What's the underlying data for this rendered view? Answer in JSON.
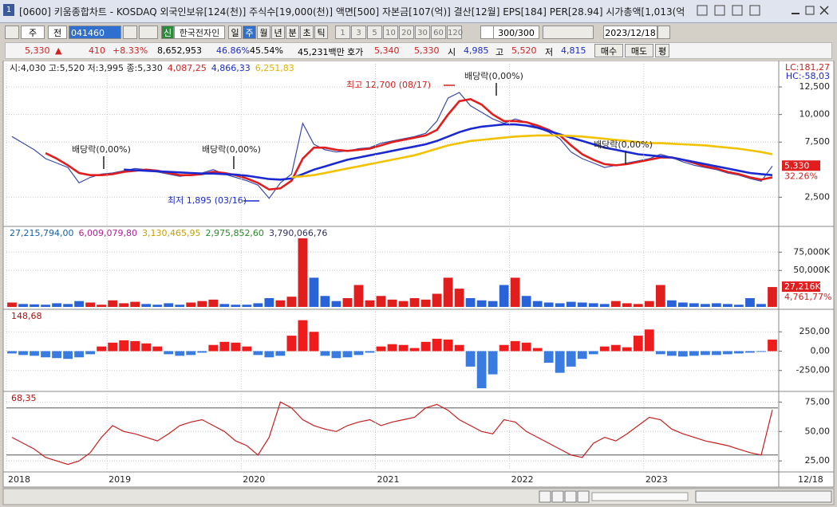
{
  "window": {
    "icon": "1",
    "title": "[0600] 키움종합차트 - KOSDAQ 외국인보유[124(천)] 주식수[19,000(천)] 액면[500] 자본금[107(억)] 결산[12월] EPS[184] PER[28.94] 시가총액[1,013(억"
  },
  "toolbar": {
    "period": "주",
    "scope": "전",
    "code": "041460",
    "new_tag": "신",
    "name": "한국전자인",
    "units": [
      "일",
      "주",
      "월",
      "년",
      "분",
      "초",
      "틱"
    ],
    "intervals": [
      "1",
      "3",
      "5",
      "10",
      "20",
      "30",
      "60",
      "120"
    ],
    "count": "300/300",
    "date": "2023/12/18"
  },
  "info_bar": {
    "price": "5,330",
    "arrow": "▲",
    "change": "410",
    "change_pct": "+8.33%",
    "volume": "8,652,953",
    "ratio1": "46.86%",
    "ratio2": "45.54%",
    "amount": "45,231백만",
    "quote_label": "호가",
    "ask": "5,340",
    "bid": "5,330",
    "open_label": "시",
    "open": "4,985",
    "high_label": "고",
    "high": "5,520",
    "low_label": "저",
    "low": "4,815",
    "buy": "매수",
    "sell": "매도",
    "avg": "평"
  },
  "chart_data": [
    {
      "type": "line",
      "legend": [
        "시:4,030 고:5,520 저:3,995 종:5,330",
        "4,087,25",
        "4,866,33",
        "6,251,83"
      ],
      "legend_colors": [
        "#222222",
        "#d42020",
        "#1a2ad0",
        "#e0b000"
      ],
      "series": [
        {
          "color": "#3a4aa8",
          "values": [
            8000,
            7400,
            6800,
            6000,
            5600,
            5200,
            3800,
            4300,
            4600,
            4700,
            4900,
            5100,
            5000,
            4800,
            4600,
            4400,
            4500,
            4700,
            5000,
            4600,
            4300,
            4000,
            3600,
            2400,
            3800,
            4600,
            9200,
            7300,
            6800,
            6600,
            6700,
            6900,
            7000,
            7400,
            7600,
            7800,
            8000,
            8300,
            9400,
            11500,
            12000,
            10800,
            10200,
            9600,
            9200,
            9600,
            9300,
            8800,
            8400,
            7800,
            6600,
            6000,
            5600,
            5200,
            5400,
            5600,
            5800,
            6000,
            6400,
            6100,
            5700,
            5400,
            5200,
            5000,
            4700,
            4500,
            4200,
            3950,
            5330
          ]
        },
        {
          "color": "#e01e1e",
          "values": [
            null,
            null,
            null,
            6500,
            6000,
            5400,
            4700,
            4500,
            4500,
            4600,
            4800,
            4900,
            5000,
            4900,
            4700,
            4500,
            4500,
            4600,
            4800,
            4700,
            4500,
            4200,
            3800,
            3200,
            3300,
            4000,
            6000,
            7000,
            7000,
            6800,
            6700,
            6800,
            6900,
            7200,
            7500,
            7700,
            7900,
            8100,
            8600,
            10000,
            11200,
            11400,
            10900,
            10000,
            9400,
            9400,
            9300,
            9000,
            8600,
            8100,
            7200,
            6400,
            5900,
            5500,
            5400,
            5500,
            5700,
            5900,
            6100,
            6100,
            5900,
            5600,
            5300,
            5100,
            4800,
            4600,
            4300,
            4100,
            4300
          ]
        },
        {
          "color": "#1a2ad0",
          "values": [
            null,
            null,
            null,
            null,
            null,
            null,
            null,
            null,
            null,
            null,
            5000,
            4950,
            4900,
            4850,
            4800,
            4750,
            4700,
            4650,
            4650,
            4600,
            4550,
            4450,
            4300,
            4150,
            4100,
            4200,
            4600,
            5000,
            5300,
            5600,
            5900,
            6100,
            6300,
            6500,
            6700,
            6900,
            7100,
            7300,
            7600,
            8000,
            8400,
            8700,
            8900,
            9000,
            9100,
            9100,
            9000,
            8800,
            8500,
            8200,
            7900,
            7600,
            7300,
            7000,
            6800,
            6600,
            6400,
            6300,
            6200,
            6100,
            5900,
            5700,
            5500,
            5300,
            5100,
            4900,
            4700,
            4600,
            4500
          ]
        },
        {
          "color": "#f2c200",
          "values": [
            null,
            null,
            null,
            null,
            null,
            null,
            null,
            null,
            null,
            null,
            null,
            null,
            null,
            null,
            null,
            null,
            null,
            null,
            null,
            null,
            null,
            null,
            null,
            null,
            null,
            4300,
            4400,
            4500,
            4700,
            4900,
            5100,
            5300,
            5500,
            5700,
            5900,
            6100,
            6300,
            6600,
            6900,
            7200,
            7400,
            7600,
            7700,
            7800,
            7900,
            8000,
            8050,
            8100,
            8100,
            8100,
            8050,
            8000,
            7900,
            7800,
            7700,
            7600,
            7500,
            7400,
            7400,
            7350,
            7300,
            7250,
            7200,
            7100,
            7000,
            6900,
            6750,
            6600,
            6400
          ]
        }
      ],
      "ylim": [
        0,
        14600
      ],
      "yticks": [
        {
          "value": 2500,
          "label": "2,500"
        },
        {
          "value": 7500,
          "label": "7,500"
        },
        {
          "value": 10000,
          "label": "10,000"
        },
        {
          "value": 12500,
          "label": "12,500"
        }
      ],
      "grid": true,
      "annotations": [
        "배당락(0,00%)",
        "배당락(0,00%)",
        "배당락(0,00%)",
        "배당락(0,00%)",
        "최고 12,700 (08/17)",
        "최저 1,895 (03/16)"
      ],
      "annotation_colors": [
        "#222222",
        "#222222",
        "#222222",
        "#222222",
        "#d42020",
        "#1a2ad0"
      ],
      "last_label": "5,330",
      "last_pct": "32.26%",
      "lc_label": "LC:181,27",
      "hc_label": "HC:-58,03"
    },
    {
      "type": "bar",
      "legend": [
        "27,215,794,00",
        "6,009,079,80",
        "3,130,465,95",
        "2,975,852,60",
        "3,790,066,76"
      ],
      "legend_colors": [
        "#1a5fa0",
        "#b0209a",
        "#c8a000",
        "#2a8a2a",
        "#303060"
      ],
      "values": [
        6000,
        4000,
        3500,
        3000,
        5000,
        4000,
        8000,
        6000,
        3000,
        9000,
        5000,
        7000,
        4000,
        3000,
        5000,
        3000,
        6000,
        8000,
        10000,
        4000,
        3000,
        3000,
        5000,
        12000,
        9000,
        14000,
        94000,
        40000,
        15000,
        8000,
        12000,
        30000,
        9000,
        15000,
        10000,
        8000,
        12000,
        10000,
        18000,
        40000,
        25000,
        12000,
        9000,
        8000,
        30000,
        40000,
        15000,
        8000,
        6000,
        5000,
        7000,
        6000,
        5000,
        4000,
        8000,
        5000,
        4000,
        8000,
        30000,
        9000,
        6000,
        5000,
        4000,
        5000,
        4000,
        3000,
        12000,
        4000,
        27216
      ],
      "up_color": "#e01e1e",
      "down_color": "#2a63d8",
      "ylim": [
        0,
        107000
      ],
      "yticks": [
        {
          "value": 50000,
          "label": "50,000K"
        },
        {
          "value": 75000,
          "label": "75,000K"
        }
      ],
      "grid": true,
      "last_label": "27,216K",
      "last_pct": "4,761,77%"
    },
    {
      "type": "bar",
      "current_label": "148,68",
      "values": [
        -30,
        -50,
        -60,
        -80,
        -90,
        -100,
        -80,
        -40,
        60,
        110,
        140,
        130,
        100,
        60,
        -40,
        -60,
        -50,
        -20,
        80,
        120,
        110,
        60,
        -50,
        -80,
        -60,
        200,
        400,
        250,
        -60,
        -90,
        -80,
        -50,
        -20,
        60,
        90,
        80,
        40,
        120,
        160,
        150,
        80,
        -200,
        -480,
        -300,
        80,
        130,
        110,
        40,
        -150,
        -280,
        -200,
        -100,
        -40,
        60,
        80,
        50,
        200,
        280,
        -40,
        -60,
        -70,
        -60,
        -50,
        -50,
        -40,
        -30,
        -20,
        -10,
        148.68
      ],
      "color": "#ee1c1c",
      "negative_color": "#3a7be0",
      "ylim": [
        -500,
        510
      ],
      "yticks": [
        {
          "value": -250,
          "label": "-250,00"
        },
        {
          "value": 0,
          "label": "0,00"
        },
        {
          "value": 250,
          "label": "250,00"
        }
      ],
      "grid": true
    },
    {
      "type": "line",
      "current_label": "68,35",
      "categories": [
        "2018",
        null,
        null,
        null,
        null,
        null,
        null,
        null,
        null,
        "2019",
        null,
        null,
        null,
        null,
        null,
        null,
        null,
        null,
        null,
        null,
        null,
        "2020",
        null,
        null,
        null,
        null,
        null,
        null,
        null,
        null,
        null,
        null,
        null,
        "2021",
        null,
        null,
        null,
        null,
        null,
        null,
        null,
        null,
        null,
        null,
        null,
        "2022",
        null,
        null,
        null,
        null,
        null,
        null,
        null,
        null,
        null,
        null,
        null,
        "2023",
        null,
        null,
        null,
        null,
        null,
        null,
        null,
        null,
        null,
        null,
        null
      ],
      "x_end_label": "12/18",
      "series": [
        {
          "color": "#c81e1e",
          "values": [
            45,
            40,
            35,
            28,
            25,
            22,
            25,
            32,
            45,
            55,
            50,
            48,
            45,
            42,
            48,
            55,
            58,
            60,
            55,
            50,
            42,
            38,
            30,
            45,
            75,
            70,
            60,
            55,
            52,
            50,
            55,
            58,
            60,
            55,
            58,
            60,
            62,
            70,
            73,
            68,
            60,
            55,
            50,
            48,
            60,
            58,
            50,
            45,
            40,
            35,
            30,
            28,
            40,
            45,
            42,
            48,
            55,
            62,
            60,
            52,
            48,
            45,
            42,
            40,
            38,
            35,
            32,
            30,
            68.35
          ]
        }
      ],
      "hlines": [
        30,
        70
      ],
      "ylim": [
        17,
        82
      ],
      "yticks": [
        {
          "value": 25,
          "label": "25,00"
        },
        {
          "value": 50,
          "label": "50,00"
        },
        {
          "value": 75,
          "label": "75,00"
        }
      ],
      "grid": true
    }
  ]
}
